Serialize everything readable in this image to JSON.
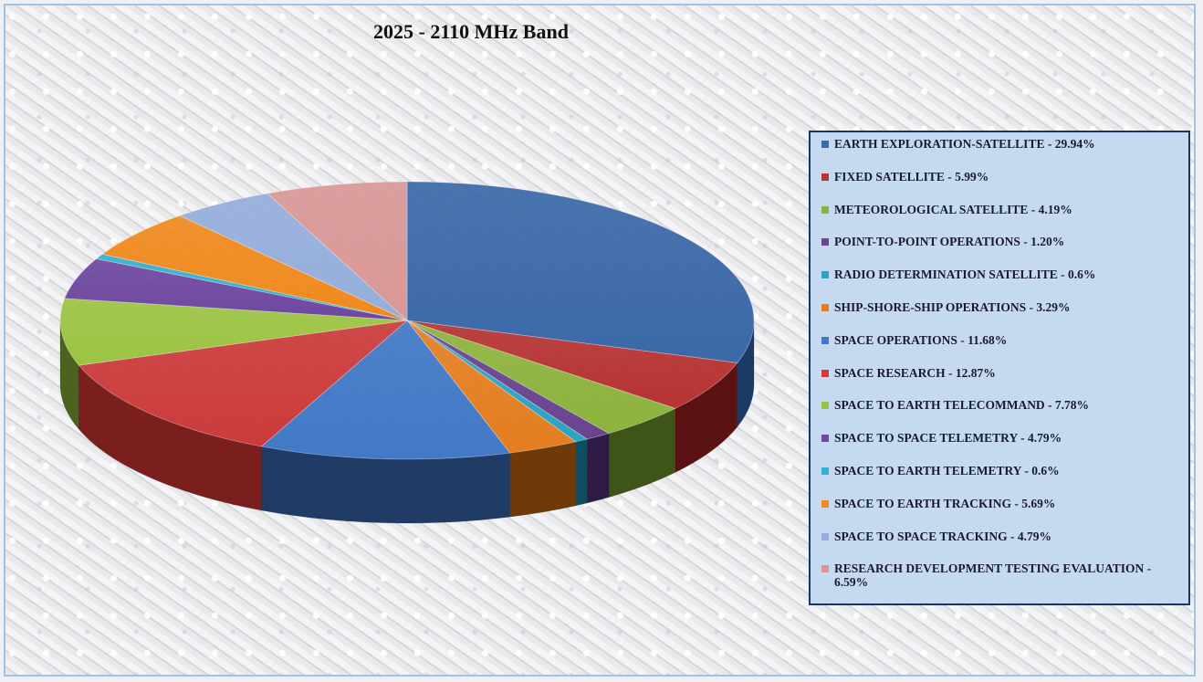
{
  "chart_data": {
    "type": "pie",
    "style": "3d-exploded",
    "title": "2025 - 2110 MHz Band",
    "legend_position": "right",
    "slices": [
      {
        "label": "EARTH EXPLORATION-SATELLITE - 29.94%",
        "value": 29.94,
        "color": "#3b69a8",
        "side": "#1d3a66"
      },
      {
        "label": "FIXED SATELLITE - 5.99%",
        "value": 5.99,
        "color": "#b63432",
        "side": "#5a1212"
      },
      {
        "label": "METEOROLOGICAL SATELLITE - 4.19%",
        "value": 4.19,
        "color": "#8db33e",
        "side": "#3f5418"
      },
      {
        "label": "POINT-TO-POINT OPERATIONS - 1.20%",
        "value": 1.2,
        "color": "#6a4490",
        "side": "#2f1c45"
      },
      {
        "label": "RADIO DETERMINATION SATELLITE - 0.6%",
        "value": 0.6,
        "color": "#2ea3c2",
        "side": "#0f4e60"
      },
      {
        "label": "SHIP-SHORE-SHIP OPERATIONS - 3.29%",
        "value": 3.29,
        "color": "#e47e20",
        "side": "#6e3a08"
      },
      {
        "label": "SPACE OPERATIONS - 11.68%",
        "value": 11.68,
        "color": "#4179c6",
        "side": "#1f3b66"
      },
      {
        "label": "SPACE RESEARCH - 12.87%",
        "value": 12.87,
        "color": "#cc3b3b",
        "side": "#7a1e1e"
      },
      {
        "label": "SPACE TO EARTH TELECOMMAND - 7.78%",
        "value": 7.78,
        "color": "#9cc443",
        "side": "#4c6320"
      },
      {
        "label": "SPACE TO SPACE TELEMETRY - 4.79%",
        "value": 4.79,
        "color": "#6e48a0",
        "side": "#352050"
      },
      {
        "label": "SPACE TO EARTH TELEMETRY - 0.6%",
        "value": 0.6,
        "color": "#36b0d0",
        "side": "#155566"
      },
      {
        "label": "SPACE TO EARTH TRACKING - 5.69%",
        "value": 5.69,
        "color": "#f08a1e",
        "side": "#7a420c"
      },
      {
        "label": "SPACE TO SPACE TRACKING - 4.79%",
        "value": 4.79,
        "color": "#95aedb",
        "side": "#4a5a80"
      },
      {
        "label": "RESEARCH DEVELOPMENT TESTING EVALUATION - 6.59%",
        "value": 6.59,
        "color": "#d99897",
        "side": "#7a4444"
      }
    ]
  }
}
